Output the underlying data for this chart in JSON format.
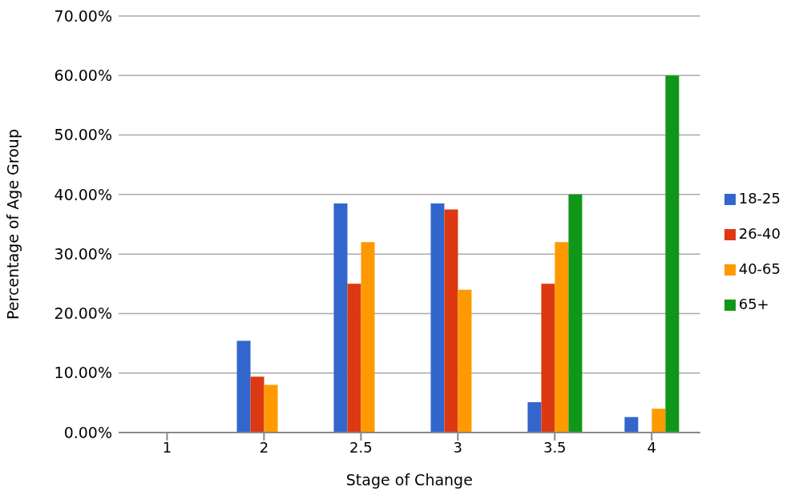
{
  "chart_data": {
    "type": "bar",
    "xlabel": "Stage of Change",
    "ylabel": "Percentage of Age Group",
    "categories": [
      "1",
      "2",
      "2.5",
      "3",
      "3.5",
      "4"
    ],
    "series": [
      {
        "name": "18-25",
        "color": "#3366cc",
        "values": [
          0,
          15.4,
          38.5,
          38.5,
          5.1,
          2.6
        ]
      },
      {
        "name": "26-40",
        "color": "#dc3912",
        "values": [
          0,
          9.4,
          25.0,
          37.5,
          25.0,
          0
        ]
      },
      {
        "name": "40-65",
        "color": "#ff9900",
        "values": [
          0,
          8.0,
          32.0,
          24.0,
          32.0,
          4.0
        ]
      },
      {
        "name": "65+",
        "color": "#109618",
        "values": [
          0,
          0,
          0,
          0,
          40.0,
          60.0
        ]
      }
    ],
    "ylim": [
      0,
      70
    ],
    "yticks": [
      {
        "value": 0,
        "label": "0.00%"
      },
      {
        "value": 10,
        "label": "10.00%"
      },
      {
        "value": 20,
        "label": "20.00%"
      },
      {
        "value": 30,
        "label": "30.00%"
      },
      {
        "value": 40,
        "label": "40.00%"
      },
      {
        "value": 50,
        "label": "50.00%"
      },
      {
        "value": 60,
        "label": "60.00%"
      },
      {
        "value": 70,
        "label": "70.00%"
      }
    ],
    "grid": "y",
    "legend": "right"
  }
}
